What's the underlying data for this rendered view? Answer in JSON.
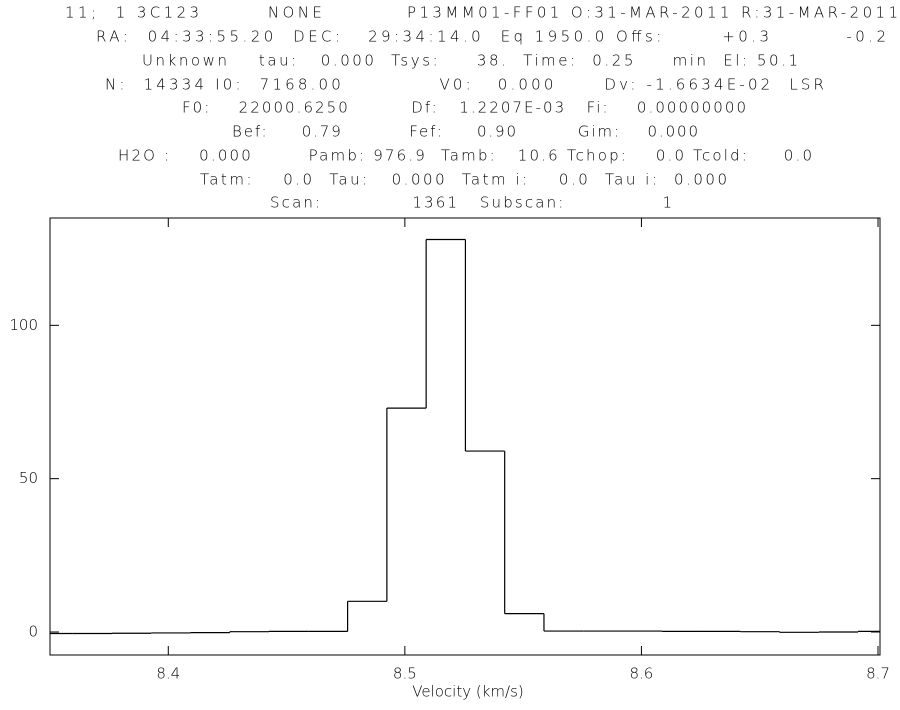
{
  "chart_data": {
    "type": "histogram",
    "header": [
      "11;  1 3C123        NONE          P13MM01-FF01 O:31-MAR-2011 R:31-MAR-2011",
      "RA:  04:33:55.20  DEC:   29:34:14.0  Eq 1950.0 Offs:       +0.3         -0.2",
      "Unknown    tau:   0.000  Tsys:     38.  Time:  0.25     min  El: 50.1",
      "N:  14334 I0:  7168.00            V0:   0.000      Dv: -1.6634E-02  LSR",
      "F0:    22000.6250         Df:   1.2207E-03   Fi:    0.00000000",
      "Bef:     0.79          Fef:     0.90         Gim:    0.000",
      "H2O :    0.000        Pamb: 976.9  Tamb:   10.6 Tchop:    0.0 Tcold:     0.0",
      "Tatm:    0.0  Tau:   0.000  Tatm i:    0.0  Tau i:  0.000",
      "Scan:             1361   Subscan:              1"
    ],
    "x_label": "Velocity (km/s)",
    "bins": [
      8.343,
      8.3596,
      8.3762,
      8.3928,
      8.4094,
      8.426,
      8.4426,
      8.4592,
      8.4758,
      8.4924,
      8.509,
      8.5256,
      8.5422,
      8.5588,
      8.5754,
      8.592,
      8.6086,
      8.6252,
      8.6418,
      8.6584,
      8.675,
      8.6916,
      8.7082
    ],
    "values": [
      -0.5,
      -0.5,
      -0.4,
      -0.3,
      -0.2,
      0.1,
      0.2,
      0.2,
      10,
      73,
      128,
      59,
      6,
      0.3,
      0.3,
      0.3,
      0.2,
      0.2,
      0.1,
      -0.1,
      0,
      0.2
    ],
    "color": "#000000",
    "xlim": [
      8.35,
      8.7
    ],
    "xticks": [
      8.4,
      8.5,
      8.6,
      8.7
    ],
    "ylim": [
      -7.5,
      135
    ],
    "yticks": [
      0,
      50,
      100
    ]
  }
}
